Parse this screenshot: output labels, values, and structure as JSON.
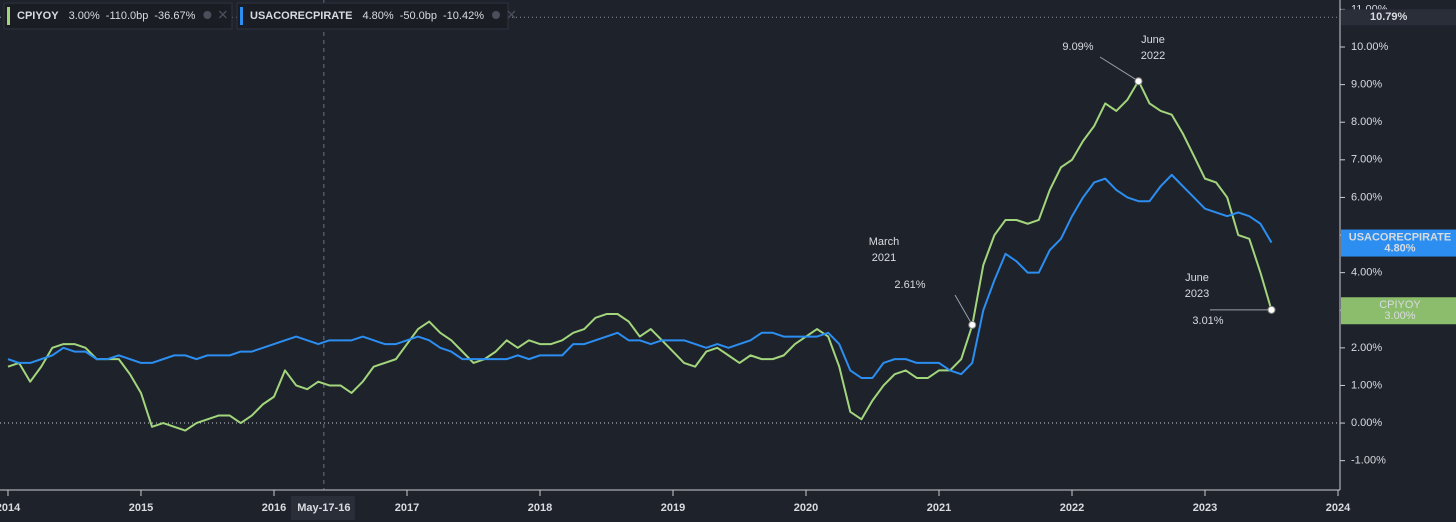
{
  "chart_data": {
    "type": "line",
    "x": [
      2014,
      2014.083,
      2014.167,
      2014.25,
      2014.333,
      2014.417,
      2014.5,
      2014.583,
      2014.667,
      2014.75,
      2014.833,
      2014.917,
      2015,
      2015.083,
      2015.167,
      2015.25,
      2015.333,
      2015.417,
      2015.5,
      2015.583,
      2015.667,
      2015.75,
      2015.833,
      2015.917,
      2016,
      2016.083,
      2016.167,
      2016.25,
      2016.333,
      2016.417,
      2016.5,
      2016.583,
      2016.667,
      2016.75,
      2016.833,
      2016.917,
      2017,
      2017.083,
      2017.167,
      2017.25,
      2017.333,
      2017.417,
      2017.5,
      2017.583,
      2017.667,
      2017.75,
      2017.833,
      2017.917,
      2018,
      2018.083,
      2018.167,
      2018.25,
      2018.333,
      2018.417,
      2018.5,
      2018.583,
      2018.667,
      2018.75,
      2018.833,
      2018.917,
      2019,
      2019.083,
      2019.167,
      2019.25,
      2019.333,
      2019.417,
      2019.5,
      2019.583,
      2019.667,
      2019.75,
      2019.833,
      2019.917,
      2020,
      2020.083,
      2020.167,
      2020.25,
      2020.333,
      2020.417,
      2020.5,
      2020.583,
      2020.667,
      2020.75,
      2020.833,
      2020.917,
      2021,
      2021.083,
      2021.167,
      2021.25,
      2021.333,
      2021.417,
      2021.5,
      2021.583,
      2021.667,
      2021.75,
      2021.833,
      2021.917,
      2022,
      2022.083,
      2022.167,
      2022.25,
      2022.333,
      2022.417,
      2022.5,
      2022.583,
      2022.667,
      2022.75,
      2022.833,
      2022.917,
      2023,
      2023.083,
      2023.167,
      2023.25,
      2023.333,
      2023.417,
      2023.5
    ],
    "series": [
      {
        "name": "CPIYOY",
        "color": "#a3d67c",
        "legend_values": [
          "3.00%",
          "-110.0bp",
          "-36.67%"
        ],
        "values": [
          1.5,
          1.6,
          1.1,
          1.5,
          2.0,
          2.1,
          2.1,
          2.0,
          1.7,
          1.7,
          1.7,
          1.3,
          0.8,
          -0.1,
          0.0,
          -0.1,
          -0.2,
          0.0,
          0.1,
          0.2,
          0.2,
          0.0,
          0.2,
          0.5,
          0.7,
          1.4,
          1.0,
          0.9,
          1.1,
          1.0,
          1.0,
          0.8,
          1.1,
          1.5,
          1.6,
          1.7,
          2.1,
          2.5,
          2.7,
          2.4,
          2.2,
          1.9,
          1.6,
          1.7,
          1.9,
          2.2,
          2.0,
          2.2,
          2.1,
          2.1,
          2.2,
          2.4,
          2.5,
          2.8,
          2.9,
          2.9,
          2.7,
          2.3,
          2.5,
          2.2,
          1.9,
          1.6,
          1.5,
          1.9,
          2.0,
          1.8,
          1.6,
          1.8,
          1.7,
          1.7,
          1.8,
          2.1,
          2.3,
          2.5,
          2.3,
          1.5,
          0.3,
          0.1,
          0.6,
          1.0,
          1.3,
          1.4,
          1.2,
          1.2,
          1.4,
          1.4,
          1.7,
          2.6,
          4.2,
          5.0,
          5.4,
          5.4,
          5.3,
          5.4,
          6.2,
          6.8,
          7.0,
          7.5,
          7.9,
          8.5,
          8.3,
          8.6,
          9.1,
          8.5,
          8.3,
          8.2,
          7.7,
          7.1,
          6.5,
          6.4,
          6.0,
          5.0,
          4.9,
          4.0,
          3.0
        ]
      },
      {
        "name": "USACORECPIRATE",
        "color": "#2b8ef0",
        "legend_values": [
          "4.80%",
          "-50.0bp",
          "-10.42%"
        ],
        "values": [
          1.7,
          1.6,
          1.6,
          1.7,
          1.8,
          2.0,
          1.9,
          1.9,
          1.7,
          1.7,
          1.8,
          1.7,
          1.6,
          1.6,
          1.7,
          1.8,
          1.8,
          1.7,
          1.8,
          1.8,
          1.8,
          1.9,
          1.9,
          2.0,
          2.1,
          2.2,
          2.3,
          2.2,
          2.1,
          2.2,
          2.2,
          2.2,
          2.3,
          2.2,
          2.1,
          2.1,
          2.2,
          2.3,
          2.2,
          2.0,
          1.9,
          1.7,
          1.7,
          1.7,
          1.7,
          1.7,
          1.8,
          1.7,
          1.8,
          1.8,
          1.8,
          2.1,
          2.1,
          2.2,
          2.3,
          2.4,
          2.2,
          2.2,
          2.1,
          2.2,
          2.2,
          2.2,
          2.1,
          2.0,
          2.1,
          2.0,
          2.1,
          2.2,
          2.4,
          2.4,
          2.3,
          2.3,
          2.3,
          2.3,
          2.4,
          2.1,
          1.4,
          1.2,
          1.2,
          1.6,
          1.7,
          1.7,
          1.6,
          1.6,
          1.6,
          1.4,
          1.3,
          1.6,
          3.0,
          3.8,
          4.5,
          4.3,
          4.0,
          4.0,
          4.6,
          4.9,
          5.5,
          6.0,
          6.4,
          6.5,
          6.2,
          6.0,
          5.9,
          5.9,
          6.3,
          6.6,
          6.3,
          6.0,
          5.7,
          5.6,
          5.5,
          5.6,
          5.5,
          5.3,
          4.8
        ]
      }
    ],
    "xlim": [
      2013.94,
      2024.015
    ],
    "xticks": [
      2014,
      2015,
      2016,
      2017,
      2018,
      2019,
      2020,
      2021,
      2022,
      2023,
      2024
    ],
    "ylim": [
      -1.78,
      11.25
    ],
    "yticks": [
      {
        "value": -1,
        "label": "-1.00%"
      },
      {
        "value": 0,
        "label": "0.00%"
      },
      {
        "value": 1,
        "label": "1.00%"
      },
      {
        "value": 2,
        "label": "2.00%"
      },
      {
        "value": 3,
        "label": "3.00%"
      },
      {
        "value": 4,
        "label": "4.00%"
      },
      {
        "value": 5,
        "label": "5.00%"
      },
      {
        "value": 6,
        "label": "6.00%"
      },
      {
        "value": 7,
        "label": "7.00%"
      },
      {
        "value": 8,
        "label": "8.00%"
      },
      {
        "value": 9,
        "label": "9.00%"
      },
      {
        "value": 10,
        "label": "10.00%"
      },
      {
        "value": 11,
        "label": "11.00%"
      }
    ],
    "annotations": [
      {
        "x": 2022.5,
        "value": 9.09,
        "label": "9.09%",
        "date": [
          "June",
          "2022"
        ]
      },
      {
        "x": 2021.25,
        "value": 2.61,
        "label": "2.61%",
        "date": [
          "March",
          "2021"
        ]
      },
      {
        "x": 2023.5,
        "value": 3.01,
        "label": "3.01%",
        "date": [
          "June",
          "2023"
        ]
      }
    ],
    "crosshair": {
      "x": 2016.375,
      "x_label": "May-17-16",
      "y": 10.79,
      "y_label": "10.79%"
    }
  }
}
